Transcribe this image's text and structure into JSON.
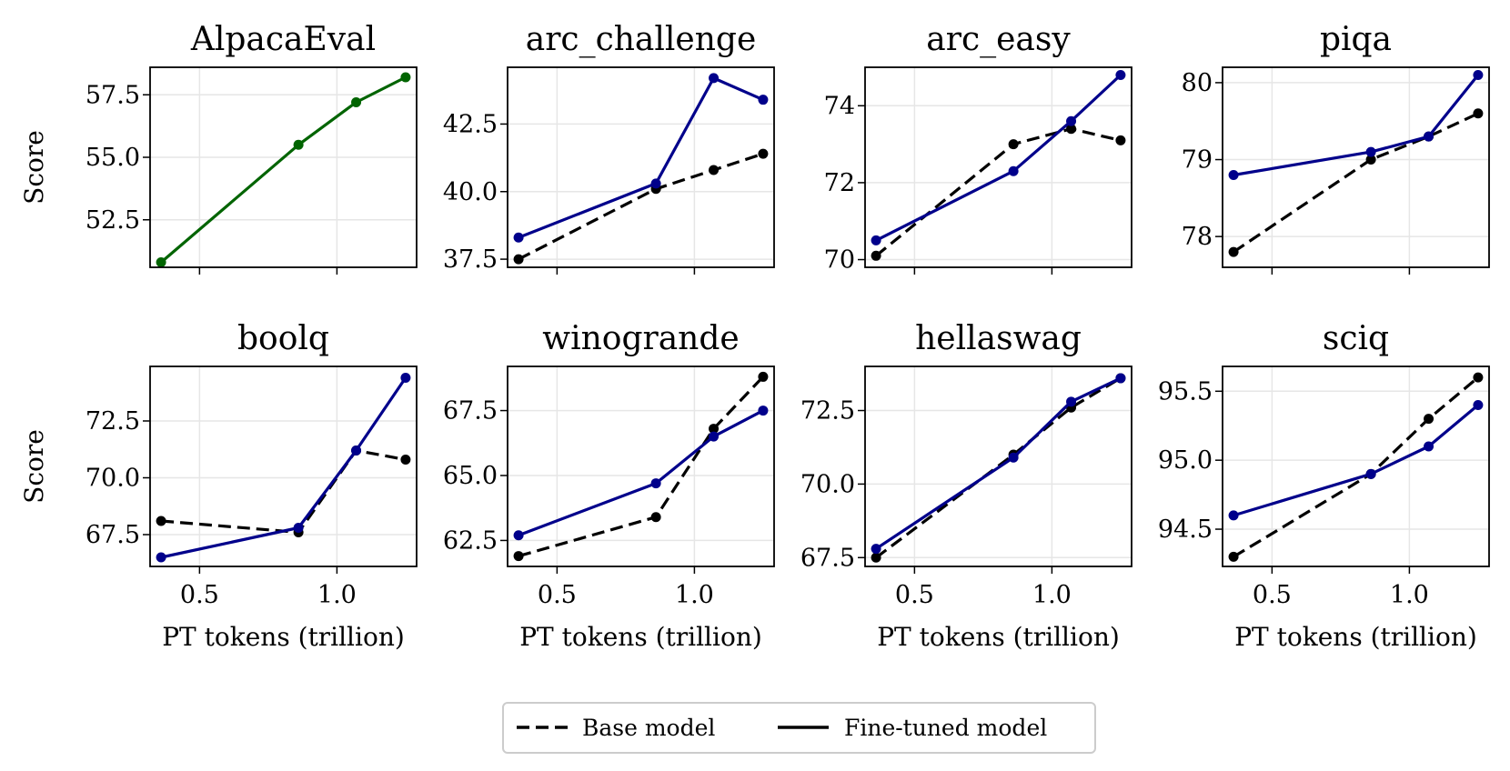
{
  "legend": {
    "base_label": "Base model",
    "finetuned_label": "Fine-tuned model"
  },
  "colors": {
    "base": "#000000",
    "finetuned": "#00008b",
    "alpaca": "#006400",
    "grid": "#e6e6e6"
  },
  "chart_data": [
    {
      "type": "line",
      "title": "AlpacaEval",
      "xlabel": "",
      "ylabel": "Score",
      "xlim": [
        0.32,
        1.29
      ],
      "ylim": [
        50.6,
        58.6
      ],
      "xticks": [
        0.5,
        1.0
      ],
      "xtick_labels": [],
      "yticks": [
        52.5,
        55.0,
        57.5
      ],
      "ytick_labels": [
        "52.5",
        "55.0",
        "57.5"
      ],
      "grid": true,
      "series": [
        {
          "role": "alpaca",
          "x": [
            0.36,
            0.86,
            1.07,
            1.25
          ],
          "values": [
            50.8,
            55.5,
            57.2,
            58.2
          ]
        }
      ]
    },
    {
      "type": "line",
      "title": "arc_challenge",
      "xlabel": "",
      "ylabel": "",
      "xlim": [
        0.32,
        1.29
      ],
      "ylim": [
        37.2,
        44.6
      ],
      "xticks": [
        0.5,
        1.0
      ],
      "xtick_labels": [],
      "yticks": [
        37.5,
        40.0,
        42.5
      ],
      "ytick_labels": [
        "37.5",
        "40.0",
        "42.5"
      ],
      "grid": true,
      "series": [
        {
          "role": "base",
          "x": [
            0.36,
            0.86,
            1.07,
            1.25
          ],
          "values": [
            37.5,
            40.1,
            40.8,
            41.4
          ]
        },
        {
          "role": "finetuned",
          "x": [
            0.36,
            0.86,
            1.07,
            1.25
          ],
          "values": [
            38.3,
            40.3,
            44.2,
            43.4
          ]
        }
      ]
    },
    {
      "type": "line",
      "title": "arc_easy",
      "xlabel": "",
      "ylabel": "",
      "xlim": [
        0.32,
        1.29
      ],
      "ylim": [
        69.8,
        75.0
      ],
      "xticks": [
        0.5,
        1.0
      ],
      "xtick_labels": [],
      "yticks": [
        70,
        72,
        74
      ],
      "ytick_labels": [
        "70",
        "72",
        "74"
      ],
      "grid": true,
      "series": [
        {
          "role": "base",
          "x": [
            0.36,
            0.86,
            1.07,
            1.25
          ],
          "values": [
            70.1,
            73.0,
            73.4,
            73.1
          ]
        },
        {
          "role": "finetuned",
          "x": [
            0.36,
            0.86,
            1.07,
            1.25
          ],
          "values": [
            70.5,
            72.3,
            73.6,
            74.8
          ]
        }
      ]
    },
    {
      "type": "line",
      "title": "piqa",
      "xlabel": "",
      "ylabel": "",
      "xlim": [
        0.32,
        1.29
      ],
      "ylim": [
        77.6,
        80.2
      ],
      "xticks": [
        0.5,
        1.0
      ],
      "xtick_labels": [],
      "yticks": [
        78,
        79,
        80
      ],
      "ytick_labels": [
        "78",
        "79",
        "80"
      ],
      "grid": true,
      "series": [
        {
          "role": "base",
          "x": [
            0.36,
            0.86,
            1.07,
            1.25
          ],
          "values": [
            77.8,
            79.0,
            79.3,
            79.6
          ]
        },
        {
          "role": "finetuned",
          "x": [
            0.36,
            0.86,
            1.07,
            1.25
          ],
          "values": [
            78.8,
            79.1,
            79.3,
            80.1
          ]
        }
      ]
    },
    {
      "type": "line",
      "title": "boolq",
      "xlabel": "PT tokens (trillion)",
      "ylabel": "Score",
      "xlim": [
        0.32,
        1.29
      ],
      "ylim": [
        66.1,
        74.9
      ],
      "xticks": [
        0.5,
        1.0
      ],
      "xtick_labels": [
        "0.5",
        "1.0"
      ],
      "yticks": [
        67.5,
        70.0,
        72.5
      ],
      "ytick_labels": [
        "67.5",
        "70.0",
        "72.5"
      ],
      "grid": true,
      "series": [
        {
          "role": "base",
          "x": [
            0.36,
            0.86,
            1.07,
            1.25
          ],
          "values": [
            68.1,
            67.6,
            71.2,
            70.8
          ]
        },
        {
          "role": "finetuned",
          "x": [
            0.36,
            0.86,
            1.07,
            1.25
          ],
          "values": [
            66.5,
            67.8,
            71.2,
            74.4
          ]
        }
      ]
    },
    {
      "type": "line",
      "title": "winogrande",
      "xlabel": "PT tokens (trillion)",
      "ylabel": "",
      "xlim": [
        0.32,
        1.29
      ],
      "ylim": [
        61.5,
        69.2
      ],
      "xticks": [
        0.5,
        1.0
      ],
      "xtick_labels": [
        "0.5",
        "1.0"
      ],
      "yticks": [
        62.5,
        65.0,
        67.5
      ],
      "ytick_labels": [
        "62.5",
        "65.0",
        "67.5"
      ],
      "grid": true,
      "series": [
        {
          "role": "base",
          "x": [
            0.36,
            0.86,
            1.07,
            1.25
          ],
          "values": [
            61.9,
            63.4,
            66.8,
            68.8
          ]
        },
        {
          "role": "finetuned",
          "x": [
            0.36,
            0.86,
            1.07,
            1.25
          ],
          "values": [
            62.7,
            64.7,
            66.5,
            67.5
          ]
        }
      ]
    },
    {
      "type": "line",
      "title": "hellaswag",
      "xlabel": "PT tokens (trillion)",
      "ylabel": "",
      "xlim": [
        0.32,
        1.29
      ],
      "ylim": [
        67.2,
        74.0
      ],
      "xticks": [
        0.5,
        1.0
      ],
      "xtick_labels": [
        "0.5",
        "1.0"
      ],
      "yticks": [
        67.5,
        70.0,
        72.5
      ],
      "ytick_labels": [
        "67.5",
        "70.0",
        "72.5"
      ],
      "grid": true,
      "series": [
        {
          "role": "base",
          "x": [
            0.36,
            0.86,
            1.07,
            1.25
          ],
          "values": [
            67.5,
            71.0,
            72.6,
            73.6
          ]
        },
        {
          "role": "finetuned",
          "x": [
            0.36,
            0.86,
            1.07,
            1.25
          ],
          "values": [
            67.8,
            70.9,
            72.8,
            73.6
          ]
        }
      ]
    },
    {
      "type": "line",
      "title": "sciq",
      "xlabel": "PT tokens (trillion)",
      "ylabel": "",
      "xlim": [
        0.32,
        1.29
      ],
      "ylim": [
        94.23,
        95.68
      ],
      "xticks": [
        0.5,
        1.0
      ],
      "xtick_labels": [
        "0.5",
        "1.0"
      ],
      "yticks": [
        94.5,
        95.0,
        95.5
      ],
      "ytick_labels": [
        "94.5",
        "95.0",
        "95.5"
      ],
      "grid": true,
      "series": [
        {
          "role": "base",
          "x": [
            0.36,
            0.86,
            1.07,
            1.25
          ],
          "values": [
            94.3,
            94.9,
            95.3,
            95.6
          ]
        },
        {
          "role": "finetuned",
          "x": [
            0.36,
            0.86,
            1.07,
            1.25
          ],
          "values": [
            94.6,
            94.9,
            95.1,
            95.4
          ]
        }
      ]
    }
  ]
}
